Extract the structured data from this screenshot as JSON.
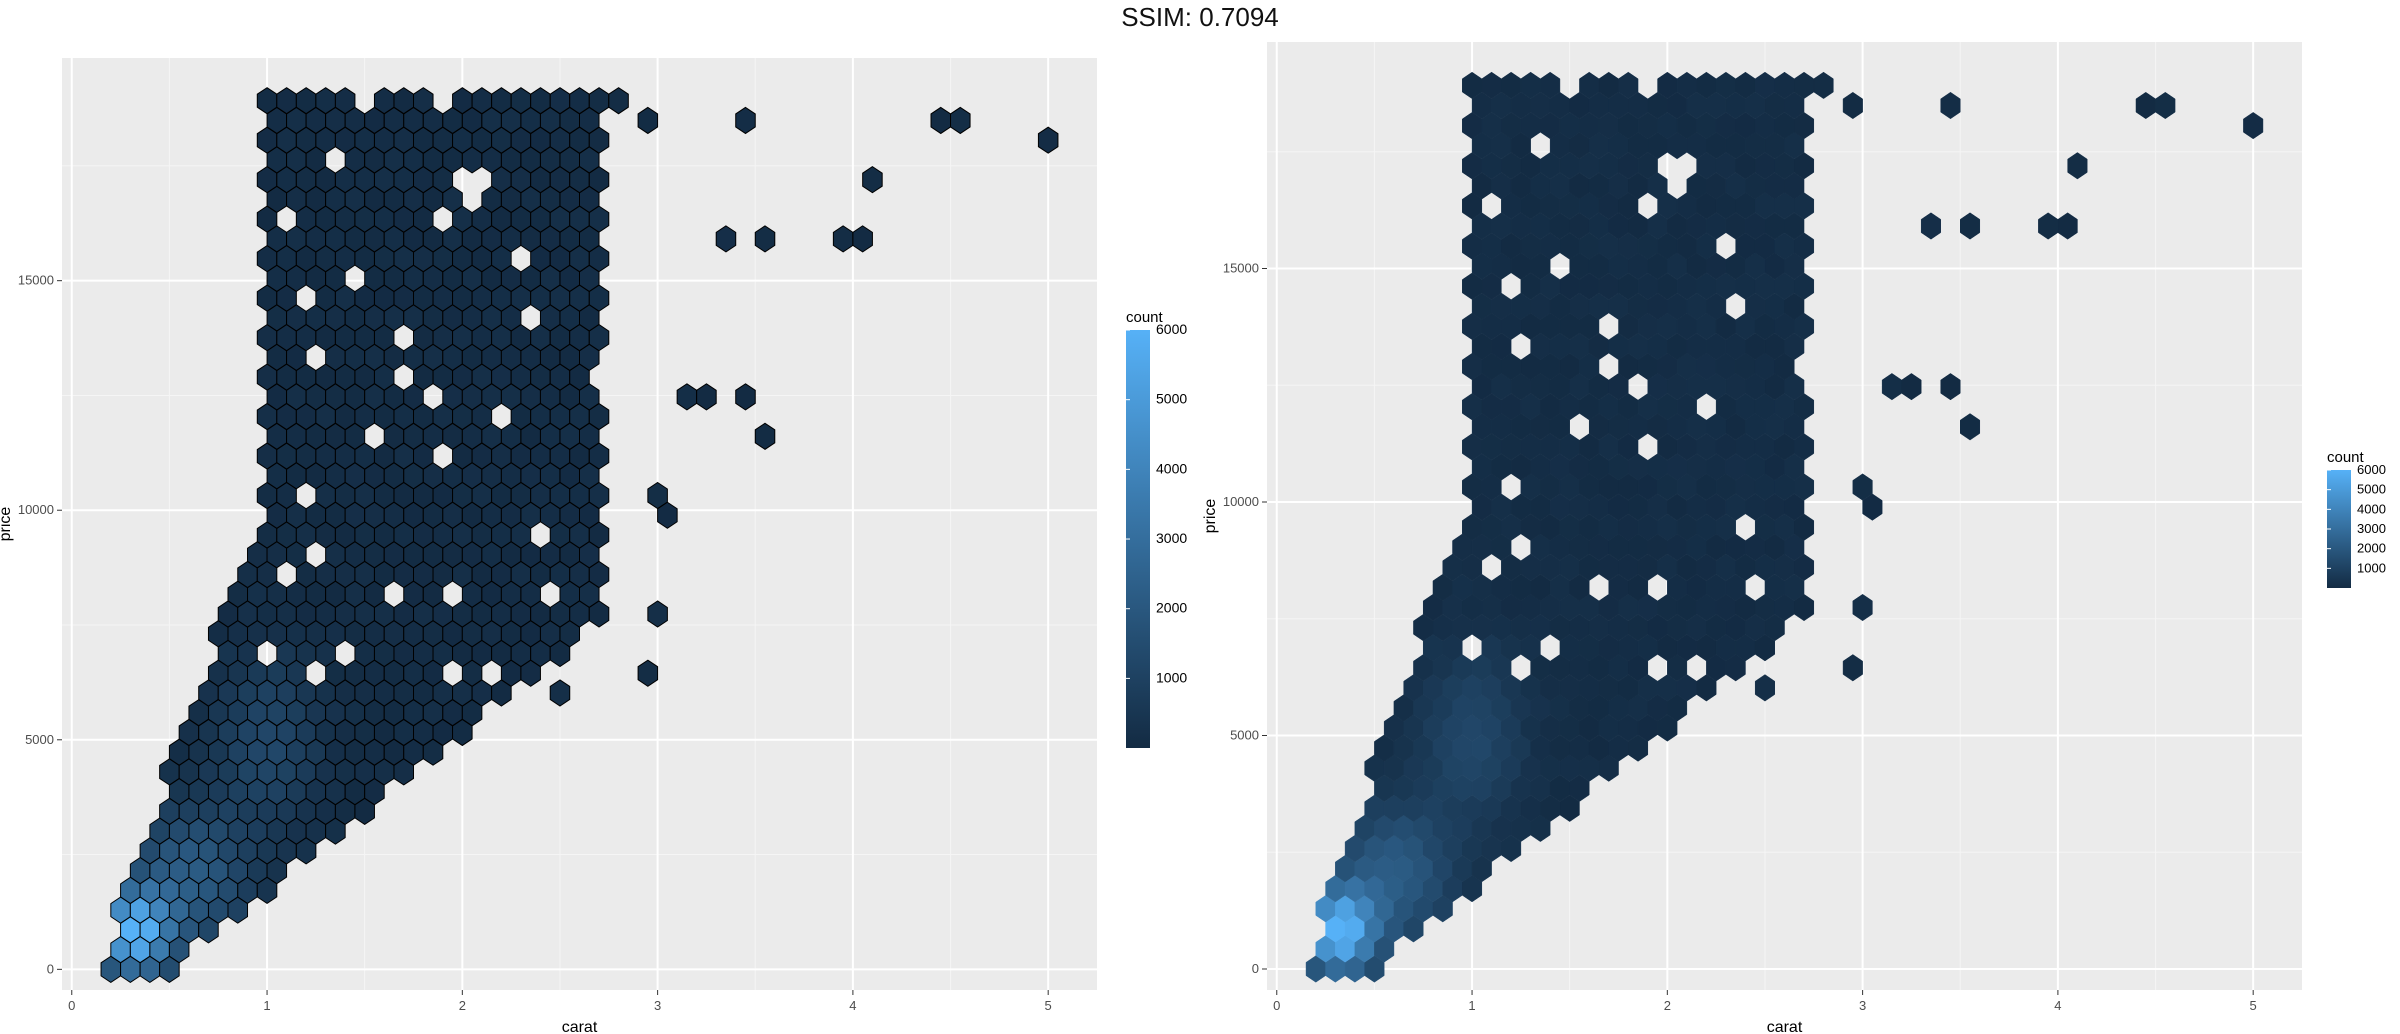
{
  "title": "SSIM: 0.7094",
  "chart_data": [
    {
      "type": "hexbin",
      "xlabel": "carat",
      "ylabel": "price",
      "xlim": [
        -0.05,
        5.25
      ],
      "ylim": [
        -450,
        19850
      ],
      "x_ticks": [
        0,
        1,
        2,
        3,
        4,
        5
      ],
      "x_tick_labels": [
        "0",
        "1",
        "2",
        "3",
        "4",
        "5"
      ],
      "y_ticks": [
        0,
        5000,
        10000,
        15000
      ],
      "y_tick_labels": [
        "0",
        "5000",
        "10000",
        "15000"
      ],
      "grid": true,
      "hex_outline": "black",
      "legend": {
        "title": "count",
        "position": "right",
        "ticks": [
          1000,
          2000,
          3000,
          4000,
          5000,
          6000
        ],
        "tick_labels": [
          "1000",
          "2000",
          "3000",
          "4000",
          "5000",
          "6000"
        ],
        "range": [
          1,
          6000
        ],
        "low_color": "#132B43",
        "high_color": "#56B1F7"
      }
    },
    {
      "type": "hexbin",
      "xlabel": "carat",
      "ylabel": "price",
      "xlim": [
        -0.05,
        5.25
      ],
      "ylim": [
        -450,
        19850
      ],
      "x_ticks": [
        0,
        1,
        2,
        3,
        4,
        5
      ],
      "x_tick_labels": [
        "0",
        "1",
        "2",
        "3",
        "4",
        "5"
      ],
      "y_ticks": [
        0,
        5000,
        10000,
        15000
      ],
      "y_tick_labels": [
        "0",
        "5000",
        "10000",
        "15000"
      ],
      "grid": true,
      "hex_outline": "none",
      "legend": {
        "title": "count",
        "position": "right",
        "ticks": [
          1000,
          2000,
          3000,
          4000,
          5000,
          6000
        ],
        "tick_labels": [
          "1000",
          "2000",
          "3000",
          "4000",
          "5000",
          "6000"
        ],
        "range": [
          1,
          6000
        ],
        "low_color": "#132B43",
        "high_color": "#56B1F7"
      }
    }
  ]
}
